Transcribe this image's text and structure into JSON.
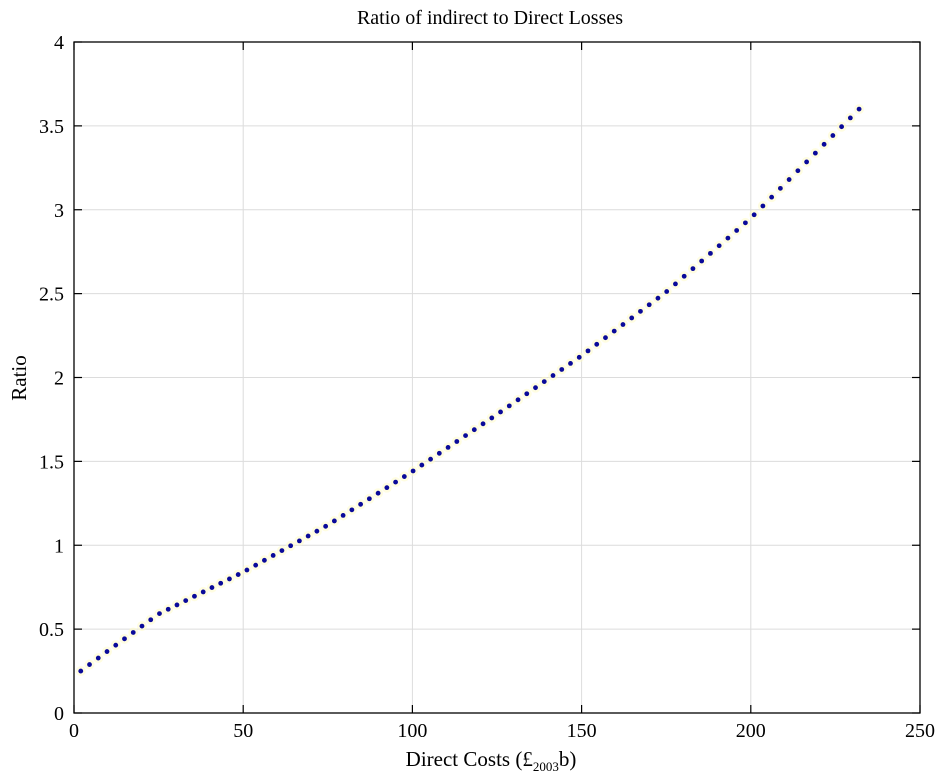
{
  "chart_data": {
    "type": "scatter",
    "title": "Ratio of indirect to Direct Losses",
    "xlabel_prefix": "Direct Costs (£",
    "xlabel_sub": "2003",
    "xlabel_suffix": "b)",
    "ylabel": "Ratio",
    "xlim": [
      0,
      250
    ],
    "ylim": [
      0,
      4
    ],
    "xticks": [
      0,
      50,
      100,
      150,
      200,
      250
    ],
    "yticks": [
      0,
      0.5,
      1,
      1.5,
      2,
      2.5,
      3,
      3.5,
      4
    ],
    "grid": true,
    "marker_color": "#0a0a9a",
    "curve_points": [
      {
        "x": 2,
        "y": 0.25
      },
      {
        "x": 10,
        "y": 0.37
      },
      {
        "x": 25,
        "y": 0.59
      },
      {
        "x": 50,
        "y": 0.84
      },
      {
        "x": 75,
        "y": 1.12
      },
      {
        "x": 100,
        "y": 1.44
      },
      {
        "x": 125,
        "y": 1.78
      },
      {
        "x": 150,
        "y": 2.13
      },
      {
        "x": 175,
        "y": 2.51
      },
      {
        "x": 200,
        "y": 2.95
      },
      {
        "x": 232,
        "y": 3.6
      }
    ],
    "x_start": 2,
    "x_end": 232,
    "n_points": 90
  }
}
